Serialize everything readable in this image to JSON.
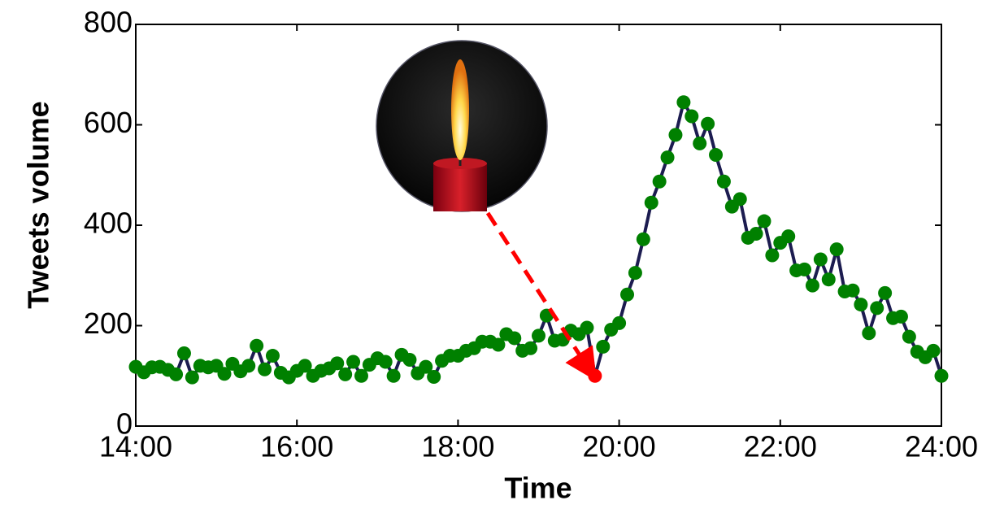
{
  "chart_data": {
    "type": "line",
    "x_label": "Time",
    "y_label": "Tweets volume",
    "x": [
      14,
      14.1,
      14.2,
      14.3,
      14.4,
      14.5,
      14.6,
      14.7,
      14.8,
      14.9,
      15,
      15.1,
      15.2,
      15.3,
      15.4,
      15.5,
      15.6,
      15.7,
      15.8,
      15.9,
      16,
      16.1,
      16.2,
      16.3,
      16.4,
      16.5,
      16.6,
      16.7,
      16.8,
      16.9,
      17,
      17.1,
      17.2,
      17.3,
      17.4,
      17.5,
      17.6,
      17.7,
      17.8,
      17.9,
      18,
      18.1,
      18.2,
      18.3,
      18.4,
      18.5,
      18.6,
      18.7,
      18.8,
      18.9,
      19,
      19.1,
      19.2,
      19.3,
      19.4,
      19.5,
      19.6,
      19.7,
      19.8,
      19.9,
      20,
      20.1,
      20.2,
      20.3,
      20.4,
      20.5,
      20.6,
      20.7,
      20.8,
      20.9,
      21,
      21.1,
      21.2,
      21.3,
      21.4,
      21.5,
      21.6,
      21.7,
      21.8,
      21.9,
      22,
      22.1,
      22.2,
      22.3,
      22.4,
      22.5,
      22.6,
      22.7,
      22.8,
      22.9,
      23,
      23.1,
      23.2,
      23.3,
      23.4,
      23.5,
      23.6,
      23.7,
      23.8,
      23.9,
      24
    ],
    "values": [
      118,
      107,
      117,
      118,
      112,
      103,
      145,
      97,
      120,
      117,
      120,
      104,
      124,
      109,
      120,
      160,
      113,
      140,
      106,
      97,
      110,
      120,
      100,
      110,
      115,
      125,
      103,
      128,
      100,
      122,
      135,
      128,
      100,
      142,
      132,
      105,
      118,
      98,
      130,
      140,
      140,
      150,
      155,
      168,
      168,
      162,
      183,
      175,
      150,
      155,
      180,
      220,
      170,
      172,
      190,
      183,
      196,
      100,
      158,
      192,
      205,
      262,
      305,
      372,
      445,
      487,
      535,
      580,
      645,
      617,
      563,
      602,
      540,
      487,
      437,
      452,
      375,
      383,
      408,
      340,
      365,
      378,
      310,
      312,
      280,
      332,
      292,
      352,
      268,
      270,
      242,
      185,
      235,
      265,
      215,
      218,
      178,
      148,
      137,
      150,
      100
    ],
    "line_color": "#1c1c50",
    "marker_color": "#008000",
    "highlight_x": 19.7,
    "highlight_color": "#ff0000",
    "xlim": [
      14,
      24
    ],
    "xticks": [
      {
        "value": 14,
        "label": "14:00"
      },
      {
        "value": 16,
        "label": "16:00"
      },
      {
        "value": 18,
        "label": "18:00"
      },
      {
        "value": 20,
        "label": "20:00"
      },
      {
        "value": 22,
        "label": "22:00"
      },
      {
        "value": 24,
        "label": "24:00"
      }
    ],
    "ylim": [
      0,
      800
    ],
    "yticks": [
      0,
      200,
      400,
      600,
      800
    ],
    "grid": false
  }
}
